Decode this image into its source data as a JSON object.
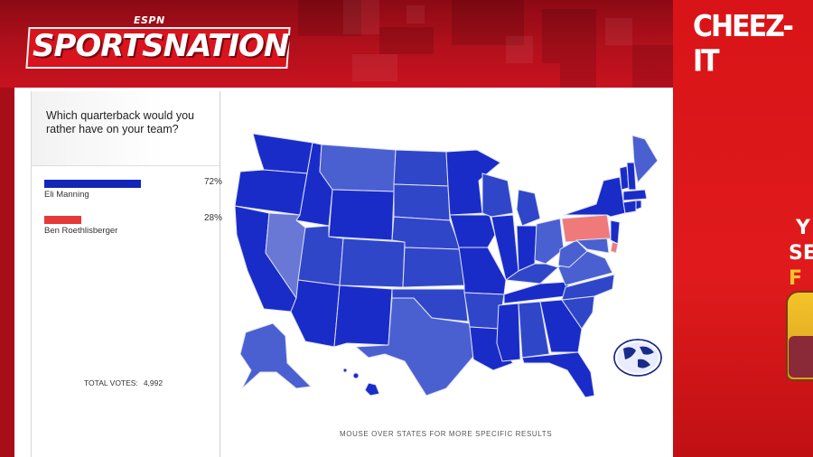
{
  "header": {
    "network_logo": "ESPN",
    "show_logo": "SPORTSNATION"
  },
  "ad": {
    "brand": "CHEEZ-IT",
    "partial_letters": [
      "Y",
      "SE",
      "F",
      "F"
    ]
  },
  "poll": {
    "question": "Which quarterback would you rather have on your team?",
    "options": [
      {
        "name": "Eli Manning",
        "percent_label": "72%",
        "percent": 0.72,
        "color": "#1426b8"
      },
      {
        "name": "Ben Roethlisberger",
        "percent_label": "28%",
        "percent": 0.28,
        "color": "#e63a3a"
      }
    ],
    "total_label": "TOTAL VOTES:",
    "total_value": "4,992"
  },
  "map": {
    "hint": "MOUSE OVER STATES FOR MORE SPECIFIC RESULTS",
    "colors": {
      "strong_eli": "#1a2cc8",
      "medium_eli": "#3046c8",
      "light_eli": "#4a60d0",
      "lightest_eli": "#6878d4",
      "ben": "#f07a7a"
    },
    "globe_icon": "globe-icon"
  }
}
